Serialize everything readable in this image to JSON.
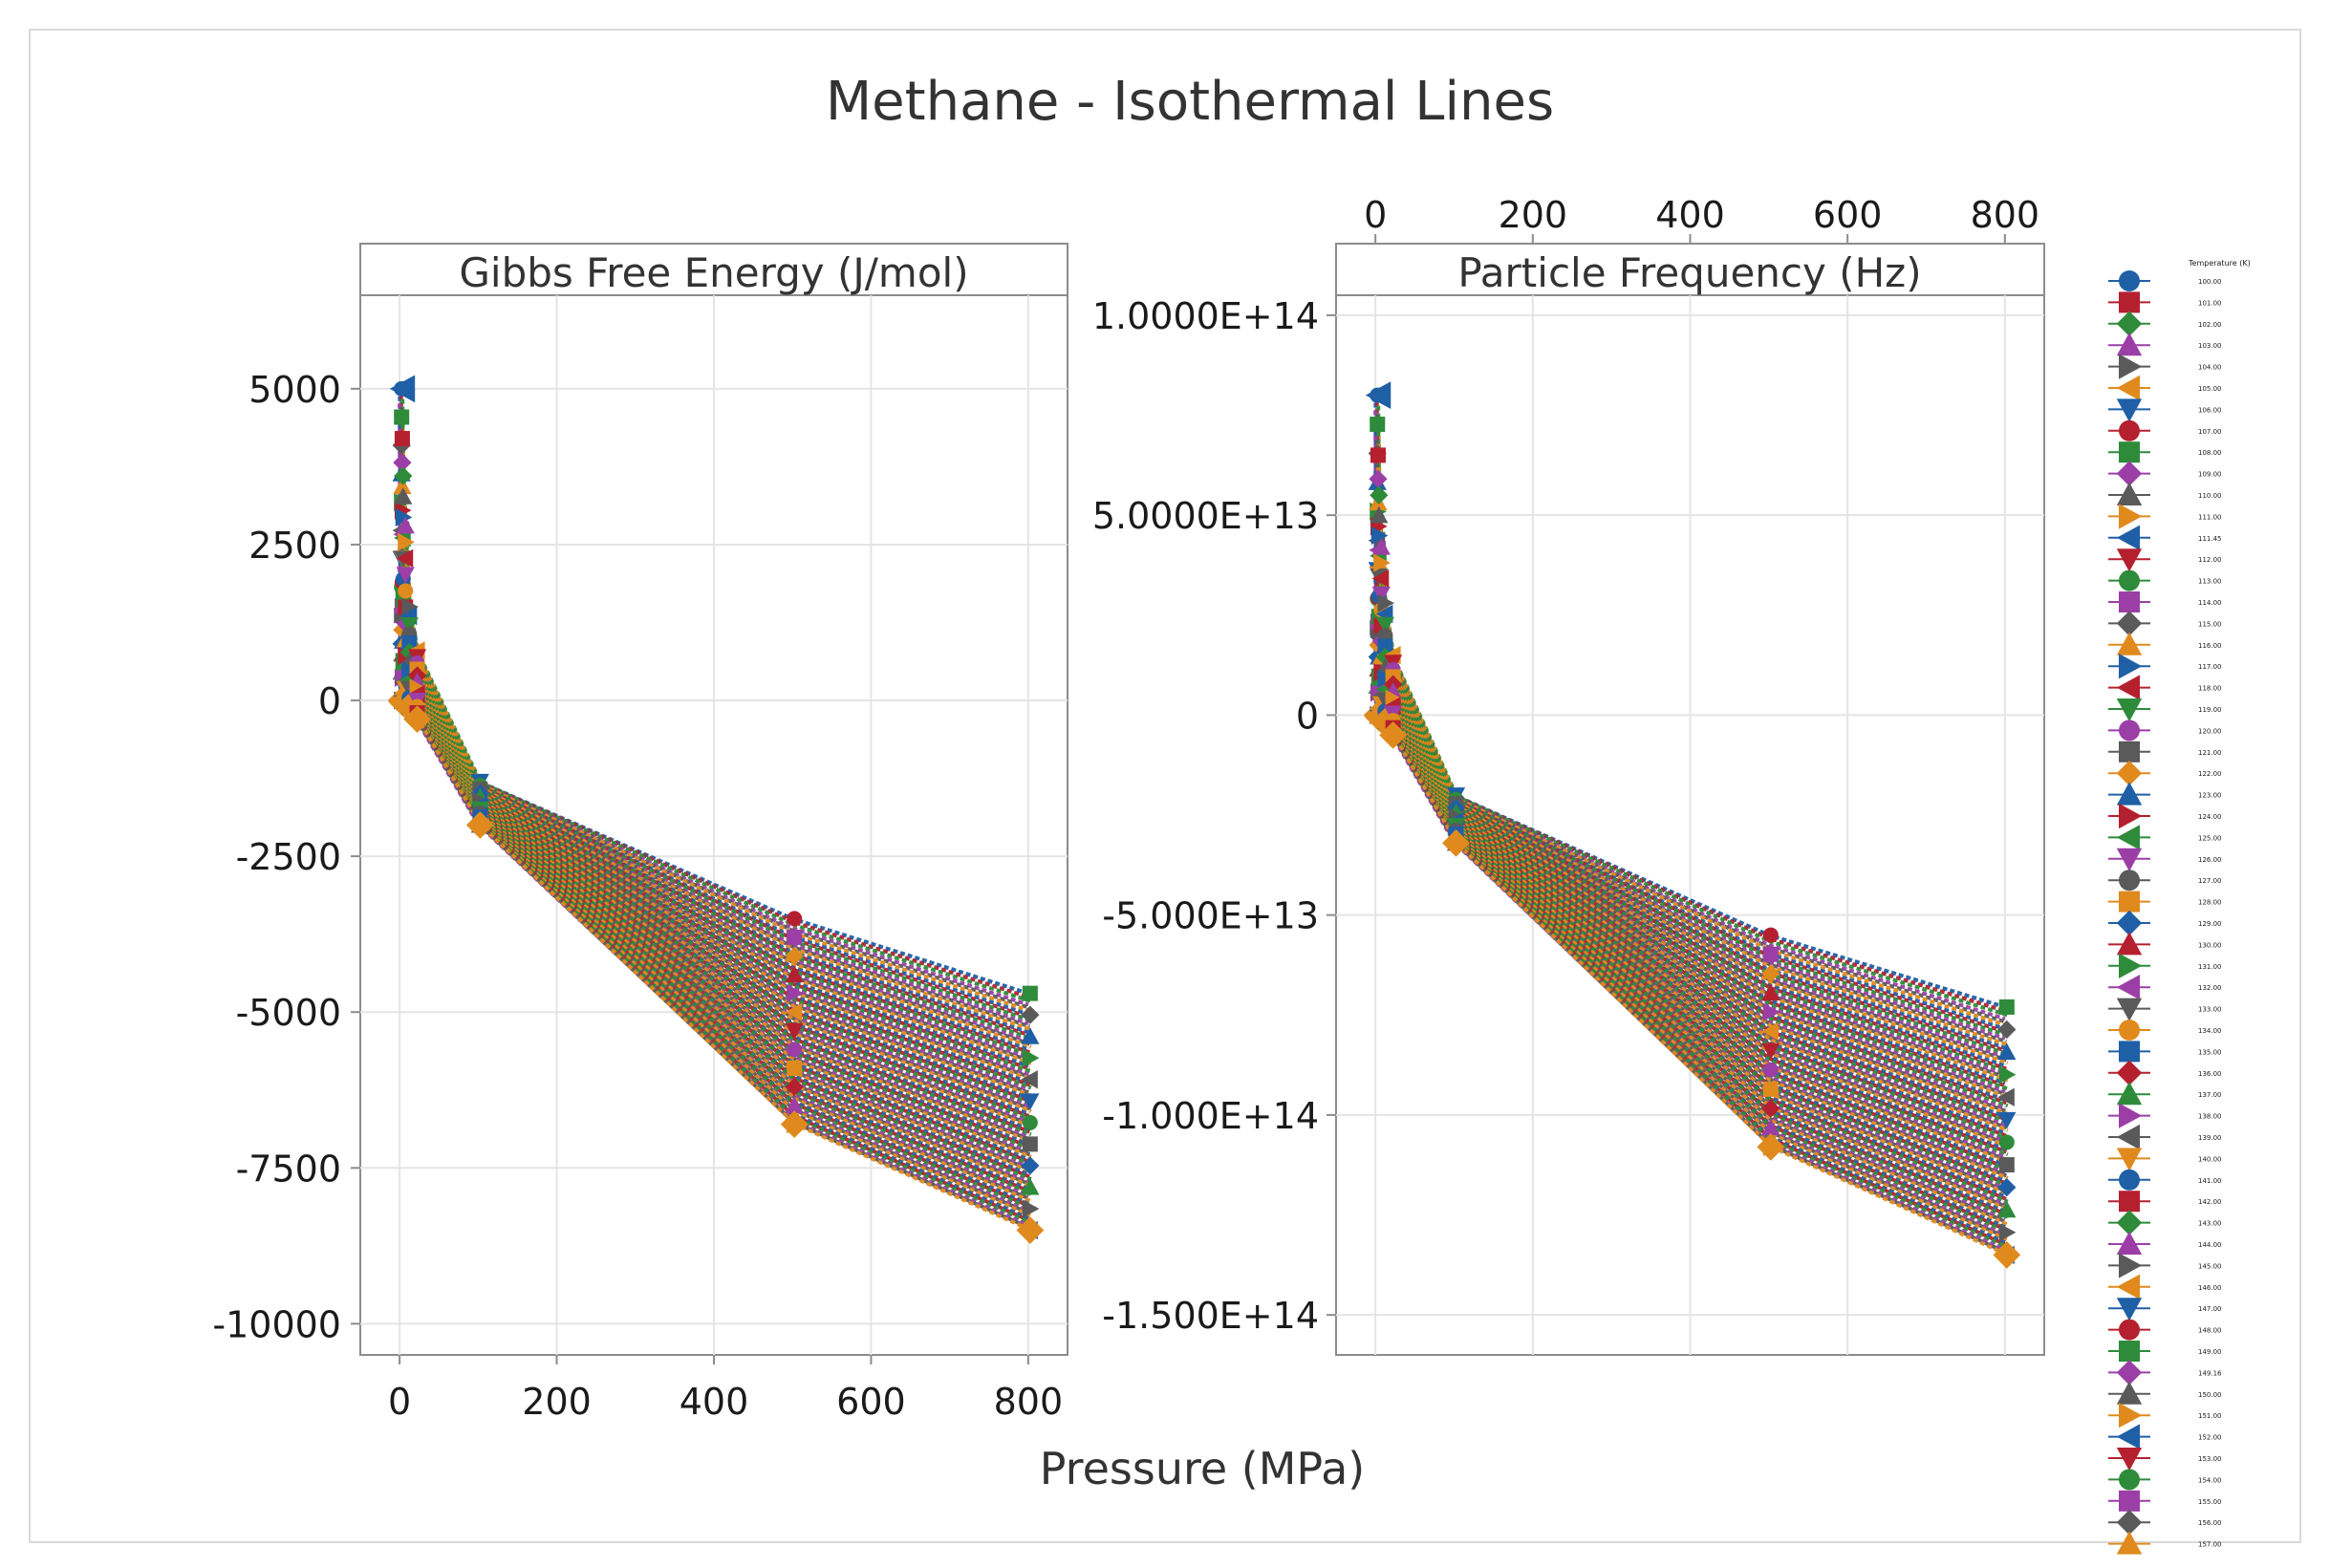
{
  "chart_data": {
    "type": "line",
    "title": "Methane - Isothermal Lines",
    "xlabel": "Pressure (MPa)",
    "x_ticks": [
      0,
      200,
      400,
      600,
      800
    ],
    "x_tick_labels": [
      "0",
      "200",
      "400",
      "600",
      "800"
    ],
    "xlim": [
      -50,
      850
    ],
    "pressures": [
      0.1,
      1,
      2,
      5,
      10,
      20,
      100,
      500,
      800
    ],
    "panels": [
      {
        "name": "gibbs",
        "title": "Gibbs Free Energy (J/mol)",
        "ylim": [
          -10500,
          6500
        ],
        "y_ticks": [
          5000,
          2500,
          0,
          -2500,
          -5000,
          -7500,
          -10000
        ],
        "y_tick_labels": [
          "5000",
          "2500",
          "0",
          "-2500",
          "-5000",
          "-7500",
          "-10000"
        ],
        "first_isotherm": [
          5000,
          4200,
          3600,
          2800,
          1500,
          800,
          -1300,
          -3500,
          -4700
        ],
        "last_isotherm": [
          0,
          -20,
          -40,
          -70,
          -100,
          -300,
          -2000,
          -6800,
          -8500
        ]
      },
      {
        "name": "frequency",
        "title": "Particle Frequency (Hz)",
        "ylim": [
          -160000000000000.0,
          105000000000000.0
        ],
        "y_ticks": [
          100000000000000.0,
          50000000000000.0,
          0,
          -50000000000000.0,
          -100000000000000.0,
          -150000000000000.0
        ],
        "y_tick_labels": [
          "1.0000E+14",
          "5.0000E+13",
          "0",
          "-5.000E+13",
          "-1.000E+14",
          "-1.500E+14"
        ],
        "first_isotherm": [
          80000000000000.0,
          65000000000000.0,
          55000000000000.0,
          42000000000000.0,
          28000000000000.0,
          15000000000000.0,
          -20000000000000.0,
          -55000000000000.0,
          -73000000000000.0
        ],
        "last_isotherm": [
          0,
          -300000000000.0,
          -600000000000.0,
          -1100000000000.0,
          -1600000000000.0,
          -5000000000000.0,
          -32000000000000.0,
          -108000000000000.0,
          -135000000000000.0
        ]
      }
    ],
    "legend": {
      "title": "Temperature (K)",
      "placement": "right",
      "entries": [
        "100.00",
        "101.00",
        "102.00",
        "103.00",
        "104.00",
        "105.00",
        "106.00",
        "107.00",
        "108.00",
        "109.00",
        "110.00",
        "111.00",
        "111.45",
        "112.00",
        "113.00",
        "114.00",
        "115.00",
        "116.00",
        "117.00",
        "118.00",
        "119.00",
        "120.00",
        "121.00",
        "122.00",
        "123.00",
        "124.00",
        "125.00",
        "126.00",
        "127.00",
        "128.00",
        "129.00",
        "130.00",
        "131.00",
        "132.00",
        "133.00",
        "134.00",
        "135.00",
        "136.00",
        "137.00",
        "138.00",
        "139.00",
        "140.00",
        "141.00",
        "142.00",
        "143.00",
        "144.00",
        "145.00",
        "146.00",
        "147.00",
        "148.00",
        "149.00",
        "149.16",
        "150.00",
        "151.00",
        "152.00",
        "153.00",
        "154.00",
        "155.00",
        "156.00",
        "157.00"
      ]
    },
    "series_style": {
      "colors": [
        "#1f5fa6",
        "#b5202e",
        "#2e8b3a",
        "#9b3fa6",
        "#5a5a5a",
        "#e08a1e"
      ],
      "markers": [
        "circle",
        "square",
        "diamond",
        "triangle-up",
        "triangle-right",
        "triangle-left",
        "triangle-down"
      ]
    }
  }
}
